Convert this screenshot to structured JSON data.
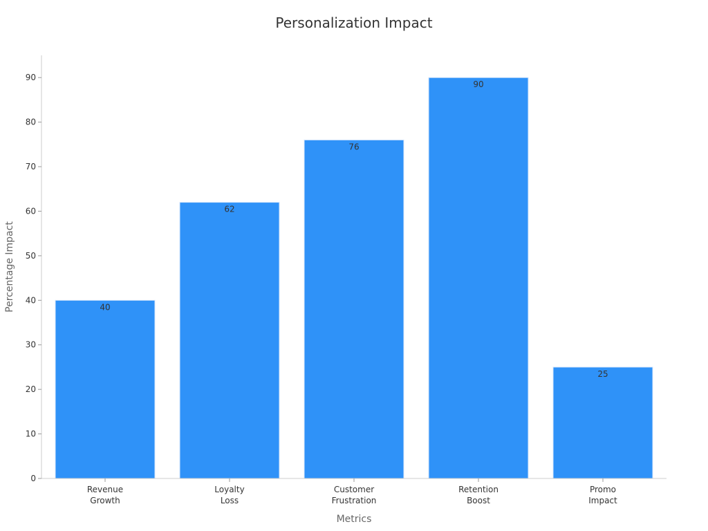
{
  "chart_data": {
    "type": "bar",
    "title": "Personalization Impact",
    "xlabel": "Metrics",
    "ylabel": "Percentage Impact",
    "categories": [
      [
        "Revenue",
        "Growth"
      ],
      [
        "Loyalty",
        "Loss"
      ],
      [
        "Customer",
        "Frustration"
      ],
      [
        "Retention",
        "Boost"
      ],
      [
        "Promo",
        "Impact"
      ]
    ],
    "values": [
      40,
      62,
      76,
      90,
      25
    ],
    "ylim": [
      0,
      95
    ],
    "yticks": [
      0,
      10,
      20,
      30,
      40,
      50,
      60,
      70,
      80,
      90
    ],
    "grid": false,
    "legend": "none",
    "bar_color": "#2f92f8",
    "bar_border_color": "#d7e7fb"
  }
}
